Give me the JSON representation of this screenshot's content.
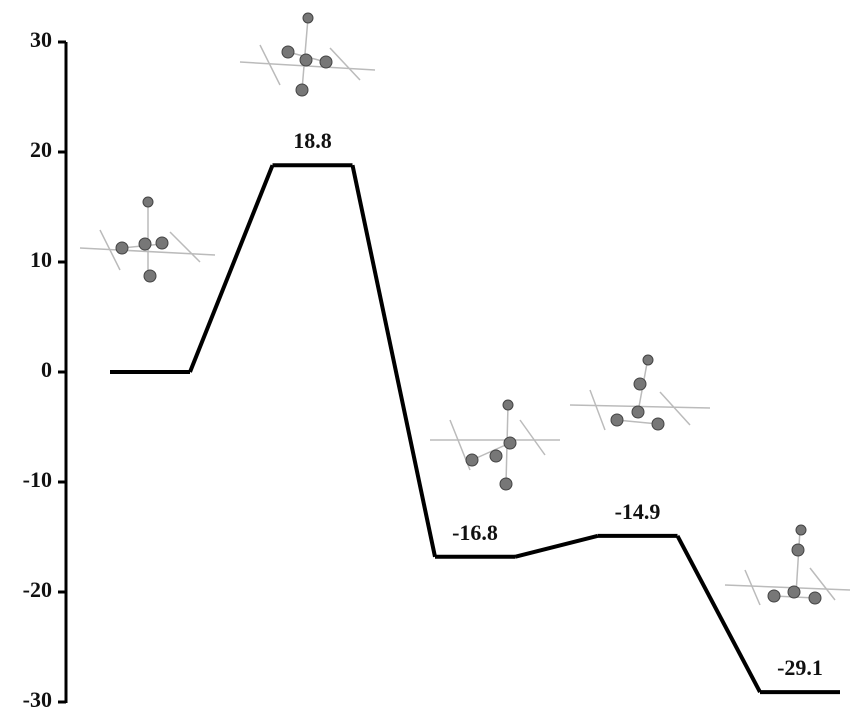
{
  "chart_data": {
    "type": "energy",
    "values": [
      0,
      18.8,
      -16.8,
      -14.9,
      -29.1
    ],
    "value_labels": [
      null,
      "18.8",
      "-16.8",
      "-14.9",
      "-29.1"
    ],
    "color": "#000000",
    "ylim": [
      -30,
      30
    ],
    "yticks": [
      -30,
      -20,
      -10,
      0,
      10,
      20,
      30
    ]
  }
}
